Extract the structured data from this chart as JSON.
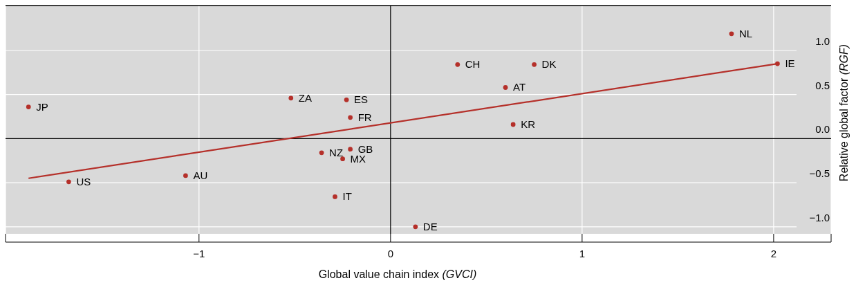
{
  "chart_data": {
    "type": "scatter",
    "xlabel": "Global value chain index (GVCI)",
    "ylabel": "Relative global factor (RGF)",
    "xlim": [
      -2.01,
      2.3
    ],
    "ylim": [
      -1.08,
      1.51
    ],
    "xticks": [
      {
        "value": -2.01,
        "label": null
      },
      {
        "value": -1,
        "label": "−1"
      },
      0,
      1,
      2,
      {
        "value": 2.3,
        "label": null
      }
    ],
    "yticks": [
      {
        "value": -1,
        "label": "−1.0"
      },
      {
        "value": -0.5,
        "label": "−0.5"
      },
      {
        "value": 0,
        "label": "0.0"
      },
      {
        "value": 0.5,
        "label": "0.5"
      },
      {
        "value": 1,
        "label": "1.0"
      }
    ],
    "grid": true,
    "marker": "circle",
    "series": [
      {
        "color": "#b5302a",
        "x": [
          -1.89,
          -1.68,
          -1.07,
          -0.52,
          -0.23,
          -0.21,
          -0.36,
          -0.21,
          -0.25,
          -0.29,
          0.13,
          0.35,
          0.75,
          0.6,
          0.64,
          1.78,
          2.02
        ],
        "values": [
          0.36,
          -0.49,
          -0.42,
          0.46,
          0.44,
          0.24,
          -0.16,
          -0.12,
          -0.23,
          -0.66,
          -1.0,
          0.84,
          0.84,
          0.58,
          0.16,
          1.19,
          0.85
        ]
      },
      {
        "type": "line",
        "marker": "none",
        "color": "#b5302a",
        "x": [
          -1.89,
          2.02
        ],
        "values": [
          -0.45,
          0.85
        ]
      }
    ],
    "annotations": [
      {
        "text": "JP",
        "x": -1.89,
        "y": 0.36
      },
      {
        "text": "US",
        "x": -1.68,
        "y": -0.49
      },
      {
        "text": "AU",
        "x": -1.07,
        "y": -0.42
      },
      {
        "text": "ZA",
        "x": -0.52,
        "y": 0.46
      },
      {
        "text": "ES",
        "x": -0.23,
        "y": 0.44
      },
      {
        "text": "FR",
        "x": -0.21,
        "y": 0.24
      },
      {
        "text": "NZ",
        "x": -0.36,
        "y": -0.16
      },
      {
        "text": "GB",
        "x": -0.21,
        "y": -0.12
      },
      {
        "text": "MX",
        "x": -0.25,
        "y": -0.23
      },
      {
        "text": "IT",
        "x": -0.29,
        "y": -0.66
      },
      {
        "text": "DE",
        "x": 0.13,
        "y": -1.0
      },
      {
        "text": "CH",
        "x": 0.35,
        "y": 0.84
      },
      {
        "text": "DK",
        "x": 0.75,
        "y": 0.84
      },
      {
        "text": "AT",
        "x": 0.6,
        "y": 0.58
      },
      {
        "text": "KR",
        "x": 0.64,
        "y": 0.16
      },
      {
        "text": "NL",
        "x": 1.78,
        "y": 1.19
      },
      {
        "text": "IE",
        "x": 2.02,
        "y": 0.85
      }
    ]
  }
}
